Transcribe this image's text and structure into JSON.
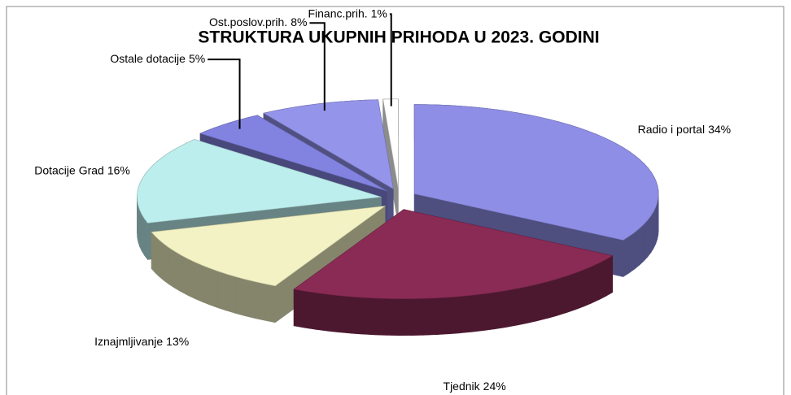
{
  "chart_data": {
    "type": "pie3d",
    "title": "STRUKTURA  UKUPNIH  PRIHODA U 2023. GODINI",
    "categories": [
      "Radio i portal",
      "Tjednik",
      "Iznajmljivanje",
      "Dotacije Grad",
      "Ostale dotacije",
      "Ost.poslov.prih.",
      "Financ.prih."
    ],
    "values": [
      34,
      24,
      13,
      16,
      5,
      8,
      1
    ],
    "value_labels": [
      "34%",
      "24%",
      "13%",
      "16%",
      "5%",
      "8%",
      "1%"
    ],
    "colors": [
      "#8e8ee6",
      "#8a2b55",
      "#f2f2c4",
      "#bdeeee",
      "#8282e0",
      "#9494ea",
      "#ffffff"
    ]
  }
}
